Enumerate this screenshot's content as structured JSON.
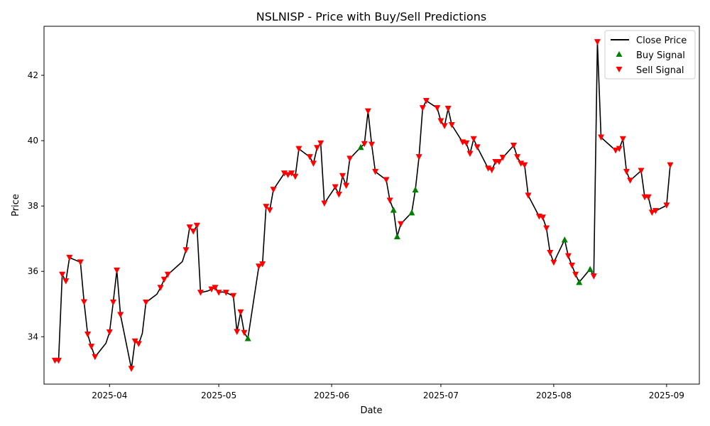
{
  "chart_data": {
    "type": "line",
    "title": "NSLNISP - Price with Buy/Sell Predictions",
    "xlabel": "Date",
    "ylabel": "Price",
    "x_range": [
      "2025-03-14",
      "2025-09-10"
    ],
    "ylim": [
      32.55,
      43.5
    ],
    "x_ticks": [
      "2025-04-01",
      "2025-05-01",
      "2025-06-01",
      "2025-07-01",
      "2025-08-01",
      "2025-09-01"
    ],
    "x_tick_labels": [
      "2025-04",
      "2025-05",
      "2025-06",
      "2025-07",
      "2025-08",
      "2025-09"
    ],
    "y_ticks": [
      34,
      36,
      38,
      40,
      42
    ],
    "grid": false,
    "legend_position": "upper right",
    "legend": [
      {
        "label": "Close Price",
        "kind": "line",
        "color": "#000000"
      },
      {
        "label": "Buy Signal",
        "kind": "triangle-up",
        "color": "#008000"
      },
      {
        "label": "Sell Signal",
        "kind": "triangle-down",
        "color": "#ff0000"
      }
    ],
    "series": [
      {
        "name": "Close Price",
        "points": [
          [
            "2025-03-17",
            33.27
          ],
          [
            "2025-03-18",
            33.27
          ],
          [
            "2025-03-19",
            35.9
          ],
          [
            "2025-03-20",
            35.7
          ],
          [
            "2025-03-21",
            36.42
          ],
          [
            "2025-03-24",
            36.28
          ],
          [
            "2025-03-25",
            35.06
          ],
          [
            "2025-03-26",
            34.07
          ],
          [
            "2025-03-27",
            33.7
          ],
          [
            "2025-03-28",
            33.38
          ],
          [
            "2025-03-31",
            33.8
          ],
          [
            "2025-04-01",
            34.14
          ],
          [
            "2025-04-02",
            35.05
          ],
          [
            "2025-04-03",
            36.03
          ],
          [
            "2025-04-04",
            34.67
          ],
          [
            "2025-04-07",
            33.02
          ],
          [
            "2025-04-08",
            33.86
          ],
          [
            "2025-04-09",
            33.78
          ],
          [
            "2025-04-10",
            34.1
          ],
          [
            "2025-04-11",
            35.05
          ],
          [
            "2025-04-14",
            35.3
          ],
          [
            "2025-04-15",
            35.5
          ],
          [
            "2025-04-16",
            35.75
          ],
          [
            "2025-04-17",
            35.9
          ],
          [
            "2025-04-21",
            36.3
          ],
          [
            "2025-04-22",
            36.65
          ],
          [
            "2025-04-23",
            37.35
          ],
          [
            "2025-04-24",
            37.22
          ],
          [
            "2025-04-25",
            37.4
          ],
          [
            "2025-04-26",
            35.35
          ],
          [
            "2025-04-28",
            35.4
          ],
          [
            "2025-04-29",
            35.45
          ],
          [
            "2025-04-30",
            35.5
          ],
          [
            "2025-05-01",
            35.35
          ],
          [
            "2025-05-02",
            35.37
          ],
          [
            "2025-05-03",
            35.35
          ],
          [
            "2025-05-05",
            35.25
          ],
          [
            "2025-05-06",
            34.15
          ],
          [
            "2025-05-07",
            34.75
          ],
          [
            "2025-05-08",
            34.12
          ],
          [
            "2025-05-09",
            33.95
          ],
          [
            "2025-05-12",
            36.15
          ],
          [
            "2025-05-13",
            36.22
          ],
          [
            "2025-05-14",
            37.98
          ],
          [
            "2025-05-15",
            37.87
          ],
          [
            "2025-05-16",
            38.5
          ],
          [
            "2025-05-19",
            39.0
          ],
          [
            "2025-05-20",
            38.95
          ],
          [
            "2025-05-21",
            39.0
          ],
          [
            "2025-05-22",
            38.9
          ],
          [
            "2025-05-23",
            39.75
          ],
          [
            "2025-05-26",
            39.5
          ],
          [
            "2025-05-27",
            39.3
          ],
          [
            "2025-05-28",
            39.78
          ],
          [
            "2025-05-29",
            39.92
          ],
          [
            "2025-05-30",
            38.08
          ],
          [
            "2025-06-02",
            38.58
          ],
          [
            "2025-06-03",
            38.35
          ],
          [
            "2025-06-04",
            38.92
          ],
          [
            "2025-06-05",
            38.62
          ],
          [
            "2025-06-06",
            39.45
          ],
          [
            "2025-06-09",
            39.8
          ],
          [
            "2025-06-10",
            39.9
          ],
          [
            "2025-06-11",
            40.9
          ],
          [
            "2025-06-12",
            39.88
          ],
          [
            "2025-06-13",
            39.05
          ],
          [
            "2025-06-16",
            38.8
          ],
          [
            "2025-06-17",
            38.17
          ],
          [
            "2025-06-18",
            37.88
          ],
          [
            "2025-06-19",
            37.07
          ],
          [
            "2025-06-20",
            37.45
          ],
          [
            "2025-06-23",
            37.8
          ],
          [
            "2025-06-24",
            38.5
          ],
          [
            "2025-06-25",
            39.5
          ],
          [
            "2025-06-26",
            41.0
          ],
          [
            "2025-06-27",
            41.22
          ],
          [
            "2025-06-30",
            41.0
          ],
          [
            "2025-07-01",
            40.6
          ],
          [
            "2025-07-02",
            40.45
          ],
          [
            "2025-07-03",
            40.98
          ],
          [
            "2025-07-04",
            40.48
          ],
          [
            "2025-07-07",
            39.95
          ],
          [
            "2025-07-08",
            39.92
          ],
          [
            "2025-07-09",
            39.6
          ],
          [
            "2025-07-10",
            40.05
          ],
          [
            "2025-07-11",
            39.8
          ],
          [
            "2025-07-14",
            39.15
          ],
          [
            "2025-07-15",
            39.1
          ],
          [
            "2025-07-16",
            39.35
          ],
          [
            "2025-07-17",
            39.35
          ],
          [
            "2025-07-18",
            39.48
          ],
          [
            "2025-07-21",
            39.85
          ],
          [
            "2025-07-22",
            39.5
          ],
          [
            "2025-07-23",
            39.3
          ],
          [
            "2025-07-24",
            39.25
          ],
          [
            "2025-07-25",
            38.32
          ],
          [
            "2025-07-28",
            37.68
          ],
          [
            "2025-07-29",
            37.65
          ],
          [
            "2025-07-30",
            37.32
          ],
          [
            "2025-07-31",
            36.57
          ],
          [
            "2025-08-01",
            36.27
          ],
          [
            "2025-08-04",
            36.97
          ],
          [
            "2025-08-05",
            36.47
          ],
          [
            "2025-08-06",
            36.18
          ],
          [
            "2025-08-07",
            35.9
          ],
          [
            "2025-08-08",
            35.67
          ],
          [
            "2025-08-11",
            36.07
          ],
          [
            "2025-08-12",
            35.85
          ],
          [
            "2025-08-13",
            43.02
          ],
          [
            "2025-08-14",
            40.1
          ],
          [
            "2025-08-18",
            39.7
          ],
          [
            "2025-08-19",
            39.75
          ],
          [
            "2025-08-20",
            40.05
          ],
          [
            "2025-08-21",
            39.05
          ],
          [
            "2025-08-22",
            38.78
          ],
          [
            "2025-08-25",
            39.08
          ],
          [
            "2025-08-26",
            38.27
          ],
          [
            "2025-08-27",
            38.27
          ],
          [
            "2025-08-28",
            37.8
          ],
          [
            "2025-08-29",
            37.85
          ],
          [
            "2025-09-01",
            38.02
          ],
          [
            "2025-09-02",
            39.25
          ]
        ]
      },
      {
        "name": "Buy Signal",
        "points": [
          [
            "2025-05-09",
            33.95
          ],
          [
            "2025-06-09",
            39.8
          ],
          [
            "2025-06-18",
            37.88
          ],
          [
            "2025-06-19",
            37.07
          ],
          [
            "2025-06-23",
            37.8
          ],
          [
            "2025-06-24",
            38.5
          ],
          [
            "2025-08-04",
            36.97
          ],
          [
            "2025-08-08",
            35.67
          ],
          [
            "2025-08-11",
            36.07
          ]
        ]
      },
      {
        "name": "Sell Signal",
        "points": [
          [
            "2025-03-17",
            33.27
          ],
          [
            "2025-03-18",
            33.27
          ],
          [
            "2025-03-19",
            35.9
          ],
          [
            "2025-03-20",
            35.7
          ],
          [
            "2025-03-21",
            36.42
          ],
          [
            "2025-03-24",
            36.28
          ],
          [
            "2025-03-25",
            35.06
          ],
          [
            "2025-03-26",
            34.07
          ],
          [
            "2025-03-27",
            33.7
          ],
          [
            "2025-03-28",
            33.38
          ],
          [
            "2025-04-01",
            34.14
          ],
          [
            "2025-04-02",
            35.05
          ],
          [
            "2025-04-03",
            36.03
          ],
          [
            "2025-04-04",
            34.67
          ],
          [
            "2025-04-07",
            33.02
          ],
          [
            "2025-04-08",
            33.86
          ],
          [
            "2025-04-09",
            33.78
          ],
          [
            "2025-04-11",
            35.05
          ],
          [
            "2025-04-15",
            35.5
          ],
          [
            "2025-04-16",
            35.75
          ],
          [
            "2025-04-17",
            35.9
          ],
          [
            "2025-04-22",
            36.65
          ],
          [
            "2025-04-23",
            37.35
          ],
          [
            "2025-04-24",
            37.22
          ],
          [
            "2025-04-25",
            37.4
          ],
          [
            "2025-04-26",
            35.35
          ],
          [
            "2025-04-29",
            35.45
          ],
          [
            "2025-04-30",
            35.5
          ],
          [
            "2025-05-01",
            35.35
          ],
          [
            "2025-05-03",
            35.35
          ],
          [
            "2025-05-05",
            35.25
          ],
          [
            "2025-05-06",
            34.15
          ],
          [
            "2025-05-07",
            34.75
          ],
          [
            "2025-05-08",
            34.12
          ],
          [
            "2025-05-12",
            36.15
          ],
          [
            "2025-05-13",
            36.22
          ],
          [
            "2025-05-14",
            37.98
          ],
          [
            "2025-05-15",
            37.87
          ],
          [
            "2025-05-16",
            38.5
          ],
          [
            "2025-05-19",
            39.0
          ],
          [
            "2025-05-20",
            38.95
          ],
          [
            "2025-05-21",
            39.0
          ],
          [
            "2025-05-22",
            38.9
          ],
          [
            "2025-05-23",
            39.75
          ],
          [
            "2025-05-26",
            39.5
          ],
          [
            "2025-05-27",
            39.3
          ],
          [
            "2025-05-28",
            39.78
          ],
          [
            "2025-05-29",
            39.92
          ],
          [
            "2025-05-30",
            38.08
          ],
          [
            "2025-06-02",
            38.58
          ],
          [
            "2025-06-03",
            38.35
          ],
          [
            "2025-06-04",
            38.92
          ],
          [
            "2025-06-05",
            38.62
          ],
          [
            "2025-06-06",
            39.45
          ],
          [
            "2025-06-10",
            39.9
          ],
          [
            "2025-06-11",
            40.9
          ],
          [
            "2025-06-12",
            39.88
          ],
          [
            "2025-06-13",
            39.05
          ],
          [
            "2025-06-16",
            38.8
          ],
          [
            "2025-06-17",
            38.17
          ],
          [
            "2025-06-20",
            37.45
          ],
          [
            "2025-06-25",
            39.5
          ],
          [
            "2025-06-26",
            41.0
          ],
          [
            "2025-06-27",
            41.22
          ],
          [
            "2025-06-30",
            41.0
          ],
          [
            "2025-07-01",
            40.6
          ],
          [
            "2025-07-02",
            40.45
          ],
          [
            "2025-07-03",
            40.98
          ],
          [
            "2025-07-04",
            40.48
          ],
          [
            "2025-07-07",
            39.95
          ],
          [
            "2025-07-08",
            39.92
          ],
          [
            "2025-07-09",
            39.6
          ],
          [
            "2025-07-10",
            40.05
          ],
          [
            "2025-07-11",
            39.8
          ],
          [
            "2025-07-14",
            39.15
          ],
          [
            "2025-07-15",
            39.1
          ],
          [
            "2025-07-16",
            39.35
          ],
          [
            "2025-07-17",
            39.35
          ],
          [
            "2025-07-18",
            39.48
          ],
          [
            "2025-07-21",
            39.85
          ],
          [
            "2025-07-22",
            39.5
          ],
          [
            "2025-07-23",
            39.3
          ],
          [
            "2025-07-24",
            39.25
          ],
          [
            "2025-07-25",
            38.32
          ],
          [
            "2025-07-28",
            37.68
          ],
          [
            "2025-07-29",
            37.65
          ],
          [
            "2025-07-30",
            37.32
          ],
          [
            "2025-07-31",
            36.57
          ],
          [
            "2025-08-01",
            36.27
          ],
          [
            "2025-08-05",
            36.47
          ],
          [
            "2025-08-06",
            36.18
          ],
          [
            "2025-08-07",
            35.9
          ],
          [
            "2025-08-12",
            35.85
          ],
          [
            "2025-08-13",
            43.02
          ],
          [
            "2025-08-14",
            40.1
          ],
          [
            "2025-08-18",
            39.7
          ],
          [
            "2025-08-19",
            39.75
          ],
          [
            "2025-08-20",
            40.05
          ],
          [
            "2025-08-21",
            39.05
          ],
          [
            "2025-08-22",
            38.78
          ],
          [
            "2025-08-25",
            39.08
          ],
          [
            "2025-08-26",
            38.27
          ],
          [
            "2025-08-27",
            38.27
          ],
          [
            "2025-08-28",
            37.8
          ],
          [
            "2025-08-29",
            37.85
          ],
          [
            "2025-09-01",
            38.02
          ],
          [
            "2025-09-02",
            39.25
          ]
        ]
      }
    ]
  }
}
